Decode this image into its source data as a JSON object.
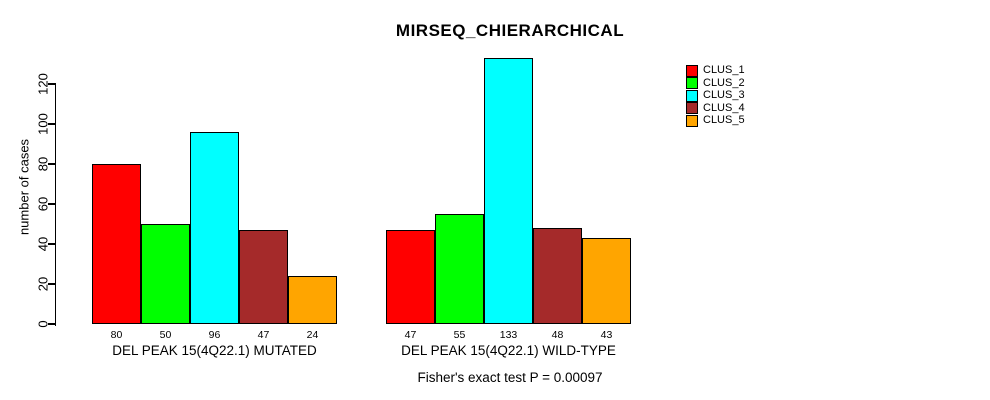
{
  "chart_data": {
    "type": "bar",
    "title": "MIRSEQ_CHIERARCHICAL",
    "ylabel": "number of cases",
    "xlabel": "",
    "categories": [
      "DEL PEAK 15(4Q22.1) MUTATED",
      "DEL PEAK 15(4Q22.1) WILD-TYPE"
    ],
    "series": [
      {
        "name": "CLUS_1",
        "color": "#FF0000",
        "values": [
          80,
          47
        ]
      },
      {
        "name": "CLUS_2",
        "color": "#00FF00",
        "values": [
          50,
          55
        ]
      },
      {
        "name": "CLUS_3",
        "color": "#00FFFF",
        "values": [
          96,
          133
        ]
      },
      {
        "name": "CLUS_4",
        "color": "#A52A2A",
        "values": [
          47,
          48
        ]
      },
      {
        "name": "CLUS_5",
        "color": "#FFA500",
        "values": [
          24,
          43
        ]
      }
    ],
    "yticks": [
      0,
      20,
      40,
      60,
      80,
      100,
      120
    ],
    "ylim": [
      0,
      135
    ],
    "grid": false,
    "legend_position": "right",
    "bar_value_labels": true,
    "bar_border_color": "#000000",
    "annotation": "Fisher's exact test P = 0.00097"
  }
}
